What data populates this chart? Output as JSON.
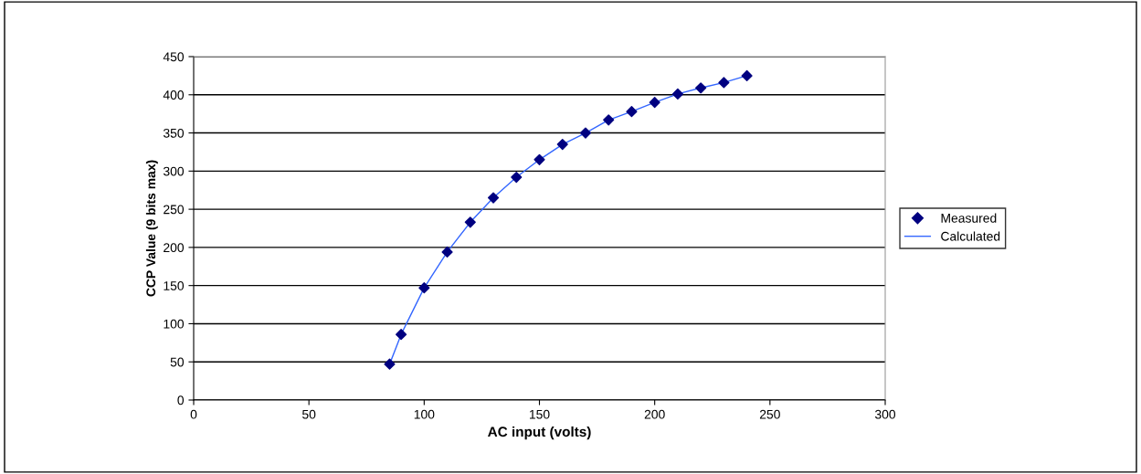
{
  "chart_data": {
    "type": "scatter",
    "xlabel": "AC input (volts)",
    "ylabel": "CCP Value (9 bits max)",
    "xlim": [
      0,
      300
    ],
    "xticks": [
      0,
      50,
      100,
      150,
      200,
      250,
      300
    ],
    "ylim": [
      0,
      450
    ],
    "yticks": [
      0,
      50,
      100,
      150,
      200,
      250,
      300,
      350,
      400,
      450
    ],
    "grid": "y",
    "legend": "right",
    "series": [
      {
        "name": "Measured",
        "marker": "diamond",
        "color": "#000080",
        "x": [
          85,
          90,
          100,
          110,
          120,
          130,
          140,
          150,
          160,
          170,
          180,
          190,
          200,
          210,
          220,
          230,
          240
        ],
        "values": [
          47,
          86,
          147,
          194,
          233,
          265,
          292,
          315,
          335,
          350,
          367,
          378,
          390,
          401,
          409,
          416,
          425
        ]
      },
      {
        "name": "Calculated",
        "type": "line",
        "marker": "none",
        "color": "#3366ff",
        "x": [
          85,
          90,
          100,
          110,
          120,
          130,
          140,
          150,
          160,
          170,
          180,
          190,
          200,
          210,
          220,
          230,
          240
        ],
        "values": [
          47,
          86,
          147,
          194,
          233,
          265,
          292,
          315,
          335,
          350,
          367,
          378,
          390,
          401,
          409,
          416,
          425
        ]
      }
    ]
  }
}
